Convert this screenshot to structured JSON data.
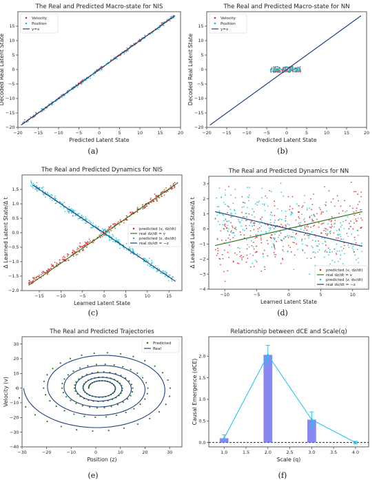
{
  "figure": {
    "captions": [
      "(a)",
      "(b)",
      "(c)",
      "(d)",
      "(e)",
      "(f)"
    ]
  },
  "chart_data": [
    {
      "id": "a",
      "type": "scatter",
      "title": "The Real and Predicted Macro-state for NIS",
      "xlabel": "Predicted Latent State",
      "ylabel": "Decoded Real Latent State",
      "xlim": [
        -20,
        20
      ],
      "ylim": [
        -20,
        20
      ],
      "xticks": [
        -20,
        -15,
        -10,
        -5,
        0,
        5,
        10,
        15,
        20
      ],
      "yticks": [
        -20,
        -15,
        -10,
        -5,
        0,
        5,
        10,
        15
      ],
      "legend_position": "top-left",
      "series": [
        {
          "name": "Velocity",
          "marker": "dot",
          "color": "#d62728",
          "x_range": [
            -19,
            18.5
          ],
          "relation": "y approx x",
          "noise": 0.3,
          "approx_count": 200
        },
        {
          "name": "Position",
          "marker": "dot",
          "color": "#17becf",
          "x_range": [
            -19,
            18.5
          ],
          "relation": "y approx x",
          "noise": 0.3,
          "approx_count": 200
        },
        {
          "name": "y=x",
          "marker": "line",
          "color": "#1f3f7f",
          "points": [
            [
              -19.2,
              -19.2
            ],
            [
              18.6,
              18.6
            ]
          ]
        }
      ]
    },
    {
      "id": "b",
      "type": "scatter",
      "title": "The Real and Predicted Macro-state for NN",
      "xlabel": "Predicted Latent State",
      "ylabel": "Decoded Real Latent State",
      "xlim": [
        -20,
        20
      ],
      "ylim": [
        -20,
        20
      ],
      "xticks": [
        -20,
        -15,
        -10,
        -5,
        0,
        5,
        10,
        15,
        20
      ],
      "yticks": [
        -20,
        -15,
        -10,
        -5,
        0,
        5,
        10,
        15
      ],
      "legend_position": "top-left",
      "series": [
        {
          "name": "Velocity",
          "marker": "dot",
          "color": "#d62728",
          "x_range": [
            -4,
            3.5
          ],
          "y_range": [
            -1,
            1
          ],
          "approx_count": 120
        },
        {
          "name": "Position",
          "marker": "dot",
          "color": "#17becf",
          "x_range": [
            -4,
            3.5
          ],
          "y_range": [
            -1,
            1
          ],
          "approx_count": 120
        },
        {
          "name": "y=x",
          "marker": "line",
          "color": "#1f3f7f",
          "points": [
            [
              -19.2,
              -19.2
            ],
            [
              18.6,
              18.6
            ]
          ]
        }
      ]
    },
    {
      "id": "c",
      "type": "scatter",
      "title": "The Real and Predicted Dynamics for NIS",
      "xlabel": "Learned Latent State",
      "ylabel": "Δ Learned Latent State/Δ t",
      "xlim": [
        -19,
        18
      ],
      "ylim": [
        -2.0,
        2.0
      ],
      "xticks": [
        -15,
        -10,
        -5,
        0,
        5,
        10,
        15
      ],
      "yticks": [
        -2.0,
        -1.5,
        -1.0,
        -0.5,
        0.0,
        0.5,
        1.0,
        1.5
      ],
      "legend_position": "center-right",
      "series": [
        {
          "name": "predicted (v, dz/dt)",
          "marker": "dot",
          "color": "#d62728",
          "x_range": [
            -17.5,
            17
          ],
          "relation": "y approx 0.1 x",
          "noise": 0.06,
          "approx_count": 320
        },
        {
          "name": "real dz/dt = v",
          "marker": "line",
          "color": "#2a7a1a",
          "points": [
            [
              -17.5,
              -1.82
            ],
            [
              17,
              1.72
            ]
          ]
        },
        {
          "name": "predicted (z, dv/dt)",
          "marker": "dot",
          "color": "#17becf",
          "x_range": [
            -17,
            16
          ],
          "relation": "y approx -0.1 x",
          "noise": 0.06,
          "approx_count": 320
        },
        {
          "name": "real dv/dt = −z",
          "marker": "line",
          "color": "#1f3f7f",
          "points": [
            [
              -16.5,
              1.65
            ],
            [
              16.5,
              -1.68
            ]
          ]
        }
      ]
    },
    {
      "id": "d",
      "type": "scatter",
      "title": "The Real and Predicted Dynamics for NN",
      "xlabel": "Learned Latent State",
      "ylabel": "Δ Learned Latent State/Δ t",
      "xlim": [
        -12.5,
        12.5
      ],
      "ylim": [
        -4,
        3.5
      ],
      "xticks": [
        -10,
        -5,
        0,
        5,
        10
      ],
      "yticks": [
        -4,
        -3,
        -2,
        -1,
        0,
        1,
        2,
        3
      ],
      "legend_position": "bottom-right",
      "series": [
        {
          "name": "predicted (v, dz/dt)",
          "marker": "dot",
          "color": "#d62728",
          "x_range": [
            -11.5,
            11.5
          ],
          "relation": "y approx 0.1 x",
          "noise": 1.1,
          "approx_count": 320
        },
        {
          "name": "real dz/dt = v",
          "marker": "line",
          "color": "#2a7a1a",
          "points": [
            [
              -11.5,
              -1.1
            ],
            [
              11.5,
              1.15
            ]
          ]
        },
        {
          "name": "predicted (z, dv/dt)",
          "marker": "dot",
          "color": "#17becf",
          "x_range": [
            -11.5,
            11.5
          ],
          "relation": "y approx -0.1 x",
          "noise": 1.1,
          "approx_count": 320
        },
        {
          "name": "real dv/dt = −z",
          "marker": "line",
          "color": "#1f3f7f",
          "points": [
            [
              -11.5,
              1.15
            ],
            [
              11.5,
              -1.15
            ]
          ]
        }
      ]
    },
    {
      "id": "e",
      "type": "line",
      "title": "The Real and Predicted Trajectories",
      "xlabel": "Position (z)",
      "ylabel": "Velocity (v)",
      "xlim": [
        -30,
        35
      ],
      "ylim": [
        -40,
        35
      ],
      "xticks": [
        -30,
        -20,
        -10,
        0,
        10,
        20,
        30
      ],
      "yticks": [
        -40,
        -30,
        -20,
        -10,
        0,
        10,
        20,
        30
      ],
      "legend_position": "top-right",
      "series": [
        {
          "name": "Predicted",
          "marker": "dot",
          "color": "#2e7d1e",
          "shape": "inward spiral",
          "center": [
            2,
            0
          ],
          "start_radius": 35,
          "end_radius": 5,
          "turns": 5
        },
        {
          "name": "Real",
          "marker": "line",
          "color": "#1f3f7f",
          "shape": "inward spiral",
          "center": [
            2,
            0
          ],
          "start_radius": 32,
          "end_radius": 5,
          "turns": 5
        }
      ]
    },
    {
      "id": "f",
      "type": "bar",
      "title": "Relationship between dCE and Scale(q)",
      "xlabel": "Scale (q)",
      "ylabel": "Causal Emergence (dCE)",
      "xlim": [
        0.65,
        4.3
      ],
      "ylim": [
        -0.1,
        2.45
      ],
      "xticks": [
        1.0,
        1.5,
        2.0,
        2.5,
        3.0,
        3.5,
        4.0
      ],
      "yticks": [
        0.0,
        0.5,
        1.0,
        1.5,
        2.0
      ],
      "categories": [
        1.0,
        2.0,
        3.0,
        4.0
      ],
      "values": [
        0.1,
        2.03,
        0.53,
        0.0
      ],
      "errors": [
        0.08,
        0.22,
        0.18,
        0.03
      ],
      "bar_color": "#7b7bf0",
      "line_color": "#22c4ee",
      "baseline": 0
    }
  ]
}
